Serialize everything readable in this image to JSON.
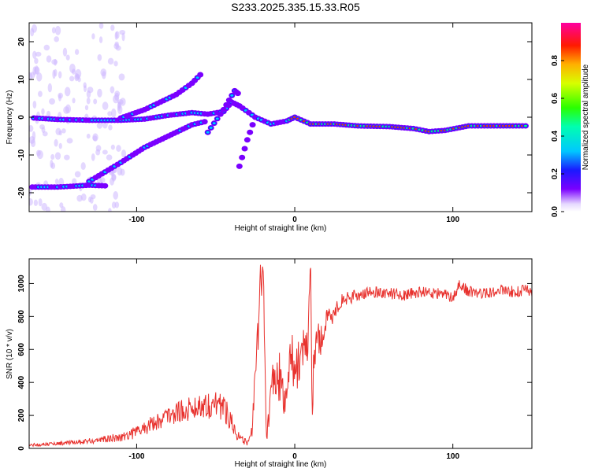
{
  "title": "S233.2025.335.15.33.R05",
  "colors": {
    "snr_line": "#e8322e",
    "axis": "#000000",
    "background": "#ffffff"
  },
  "chart_data": [
    {
      "type": "heatmap",
      "name": "spectrogram",
      "xlabel": "Height of straight line (km)",
      "ylabel": "Frequency (Hz)",
      "xlim": [
        -168,
        150
      ],
      "ylim": [
        -25,
        25
      ],
      "xticks": [
        -100,
        0,
        100
      ],
      "xtick_labels": [
        "-100",
        "0",
        "100"
      ],
      "yticks": [
        -20,
        -10,
        0,
        10,
        20
      ],
      "ytick_labels": [
        "-20",
        "-10",
        "0",
        "10",
        "20"
      ],
      "colorbar": {
        "label": "Normalized spectral amplitude",
        "range": [
          0,
          1
        ],
        "ticks": [
          0.0,
          0.2,
          0.4,
          0.6,
          0.8
        ],
        "tick_labels": [
          "0.0",
          "0.2",
          "0.4",
          "0.6",
          "0.8"
        ]
      },
      "features": [
        {
          "name": "main-trace",
          "points": [
            [
              -165,
              -0.2
            ],
            [
              -150,
              -0.6
            ],
            [
              -130,
              -0.8
            ],
            [
              -110,
              -0.8
            ],
            [
              -95,
              -0.5
            ],
            [
              -80,
              0.5
            ],
            [
              -65,
              1.2
            ],
            [
              -55,
              0.8
            ],
            [
              -45,
              1.5
            ],
            [
              -40,
              4
            ],
            [
              -35,
              3
            ],
            [
              -25,
              0
            ],
            [
              -15,
              -1.8
            ],
            [
              -5,
              -1
            ],
            [
              0,
              0
            ],
            [
              10,
              -1.8
            ],
            [
              25,
              -1.8
            ],
            [
              40,
              -2.3
            ],
            [
              60,
              -2.5
            ],
            [
              75,
              -3
            ],
            [
              85,
              -3.8
            ],
            [
              95,
              -3.5
            ],
            [
              110,
              -2.3
            ],
            [
              130,
              -2.3
            ],
            [
              148,
              -2.3
            ]
          ],
          "amplitude": 0.5
        },
        {
          "name": "rising-trace",
          "points": [
            [
              -110,
              -0.2
            ],
            [
              -95,
              2
            ],
            [
              -85,
              4
            ],
            [
              -75,
              6
            ],
            [
              -65,
              9
            ],
            [
              -58,
              12
            ]
          ],
          "amplitude": 0.35
        },
        {
          "name": "lower-trace",
          "points": [
            [
              -130,
              -17
            ],
            [
              -110,
              -12
            ],
            [
              -95,
              -8
            ],
            [
              -80,
              -5
            ],
            [
              -65,
              -2
            ],
            [
              -55,
              -1
            ]
          ],
          "amplitude": 0.3
        },
        {
          "name": "spike-up",
          "points": [
            [
              -55,
              -4
            ],
            [
              -45,
              2
            ],
            [
              -38,
              7
            ],
            [
              -35,
              6
            ]
          ],
          "amplitude": 0.3
        },
        {
          "name": "spike-down",
          "points": [
            [
              -35,
              -13
            ],
            [
              -30,
              -6
            ],
            [
              -25,
              0
            ]
          ],
          "amplitude": 0.2
        },
        {
          "name": "left-low-blobs",
          "points": [
            [
              -166,
              -18.5
            ],
            [
              -150,
              -18.5
            ],
            [
              -130,
              -18
            ],
            [
              -118,
              -18.2
            ]
          ],
          "amplitude": 0.4
        }
      ]
    },
    {
      "type": "line",
      "name": "snr",
      "xlabel": "Height of straight line (km)",
      "ylabel": "SNR (10 * v/v)",
      "xlim": [
        -168,
        150
      ],
      "ylim": [
        0,
        1150
      ],
      "xticks": [
        -100,
        0,
        100
      ],
      "xtick_labels": [
        "-100",
        "0",
        "100"
      ],
      "yticks": [
        0,
        200,
        400,
        600,
        800,
        1000
      ],
      "ytick_labels": [
        "0",
        "200",
        "400",
        "600",
        "800",
        "1000"
      ],
      "series": [
        {
          "name": "SNR",
          "color": "#e8322e",
          "x": [
            -168,
            -160,
            -150,
            -140,
            -130,
            -120,
            -110,
            -100,
            -90,
            -80,
            -70,
            -60,
            -50,
            -45,
            -40,
            -35,
            -30,
            -27,
            -25,
            -22,
            -20,
            -18,
            -15,
            -10,
            -5,
            -3,
            0,
            5,
            8,
            10,
            11,
            12,
            14,
            16,
            20,
            25,
            30,
            40,
            50,
            60,
            70,
            80,
            90,
            100,
            105,
            110,
            120,
            130,
            140,
            150
          ],
          "values": [
            20,
            25,
            30,
            35,
            45,
            55,
            70,
            100,
            150,
            200,
            230,
            260,
            270,
            250,
            170,
            60,
            30,
            110,
            380,
            900,
            1130,
            50,
            380,
            430,
            300,
            650,
            430,
            630,
            560,
            1160,
            150,
            560,
            690,
            640,
            760,
            830,
            900,
            930,
            950,
            940,
            930,
            950,
            940,
            920,
            1000,
            950,
            940,
            960,
            950,
            960
          ],
          "noise_amplitude": [
            10,
            10,
            12,
            14,
            18,
            22,
            28,
            40,
            50,
            60,
            70,
            80,
            90,
            80,
            70,
            30,
            20,
            40,
            150,
            200,
            150,
            40,
            160,
            160,
            140,
            160,
            140,
            150,
            140,
            40,
            40,
            140,
            120,
            100,
            80,
            60,
            40,
            35,
            35,
            35,
            35,
            35,
            35,
            35,
            40,
            35,
            35,
            35,
            35,
            40
          ]
        }
      ]
    }
  ]
}
